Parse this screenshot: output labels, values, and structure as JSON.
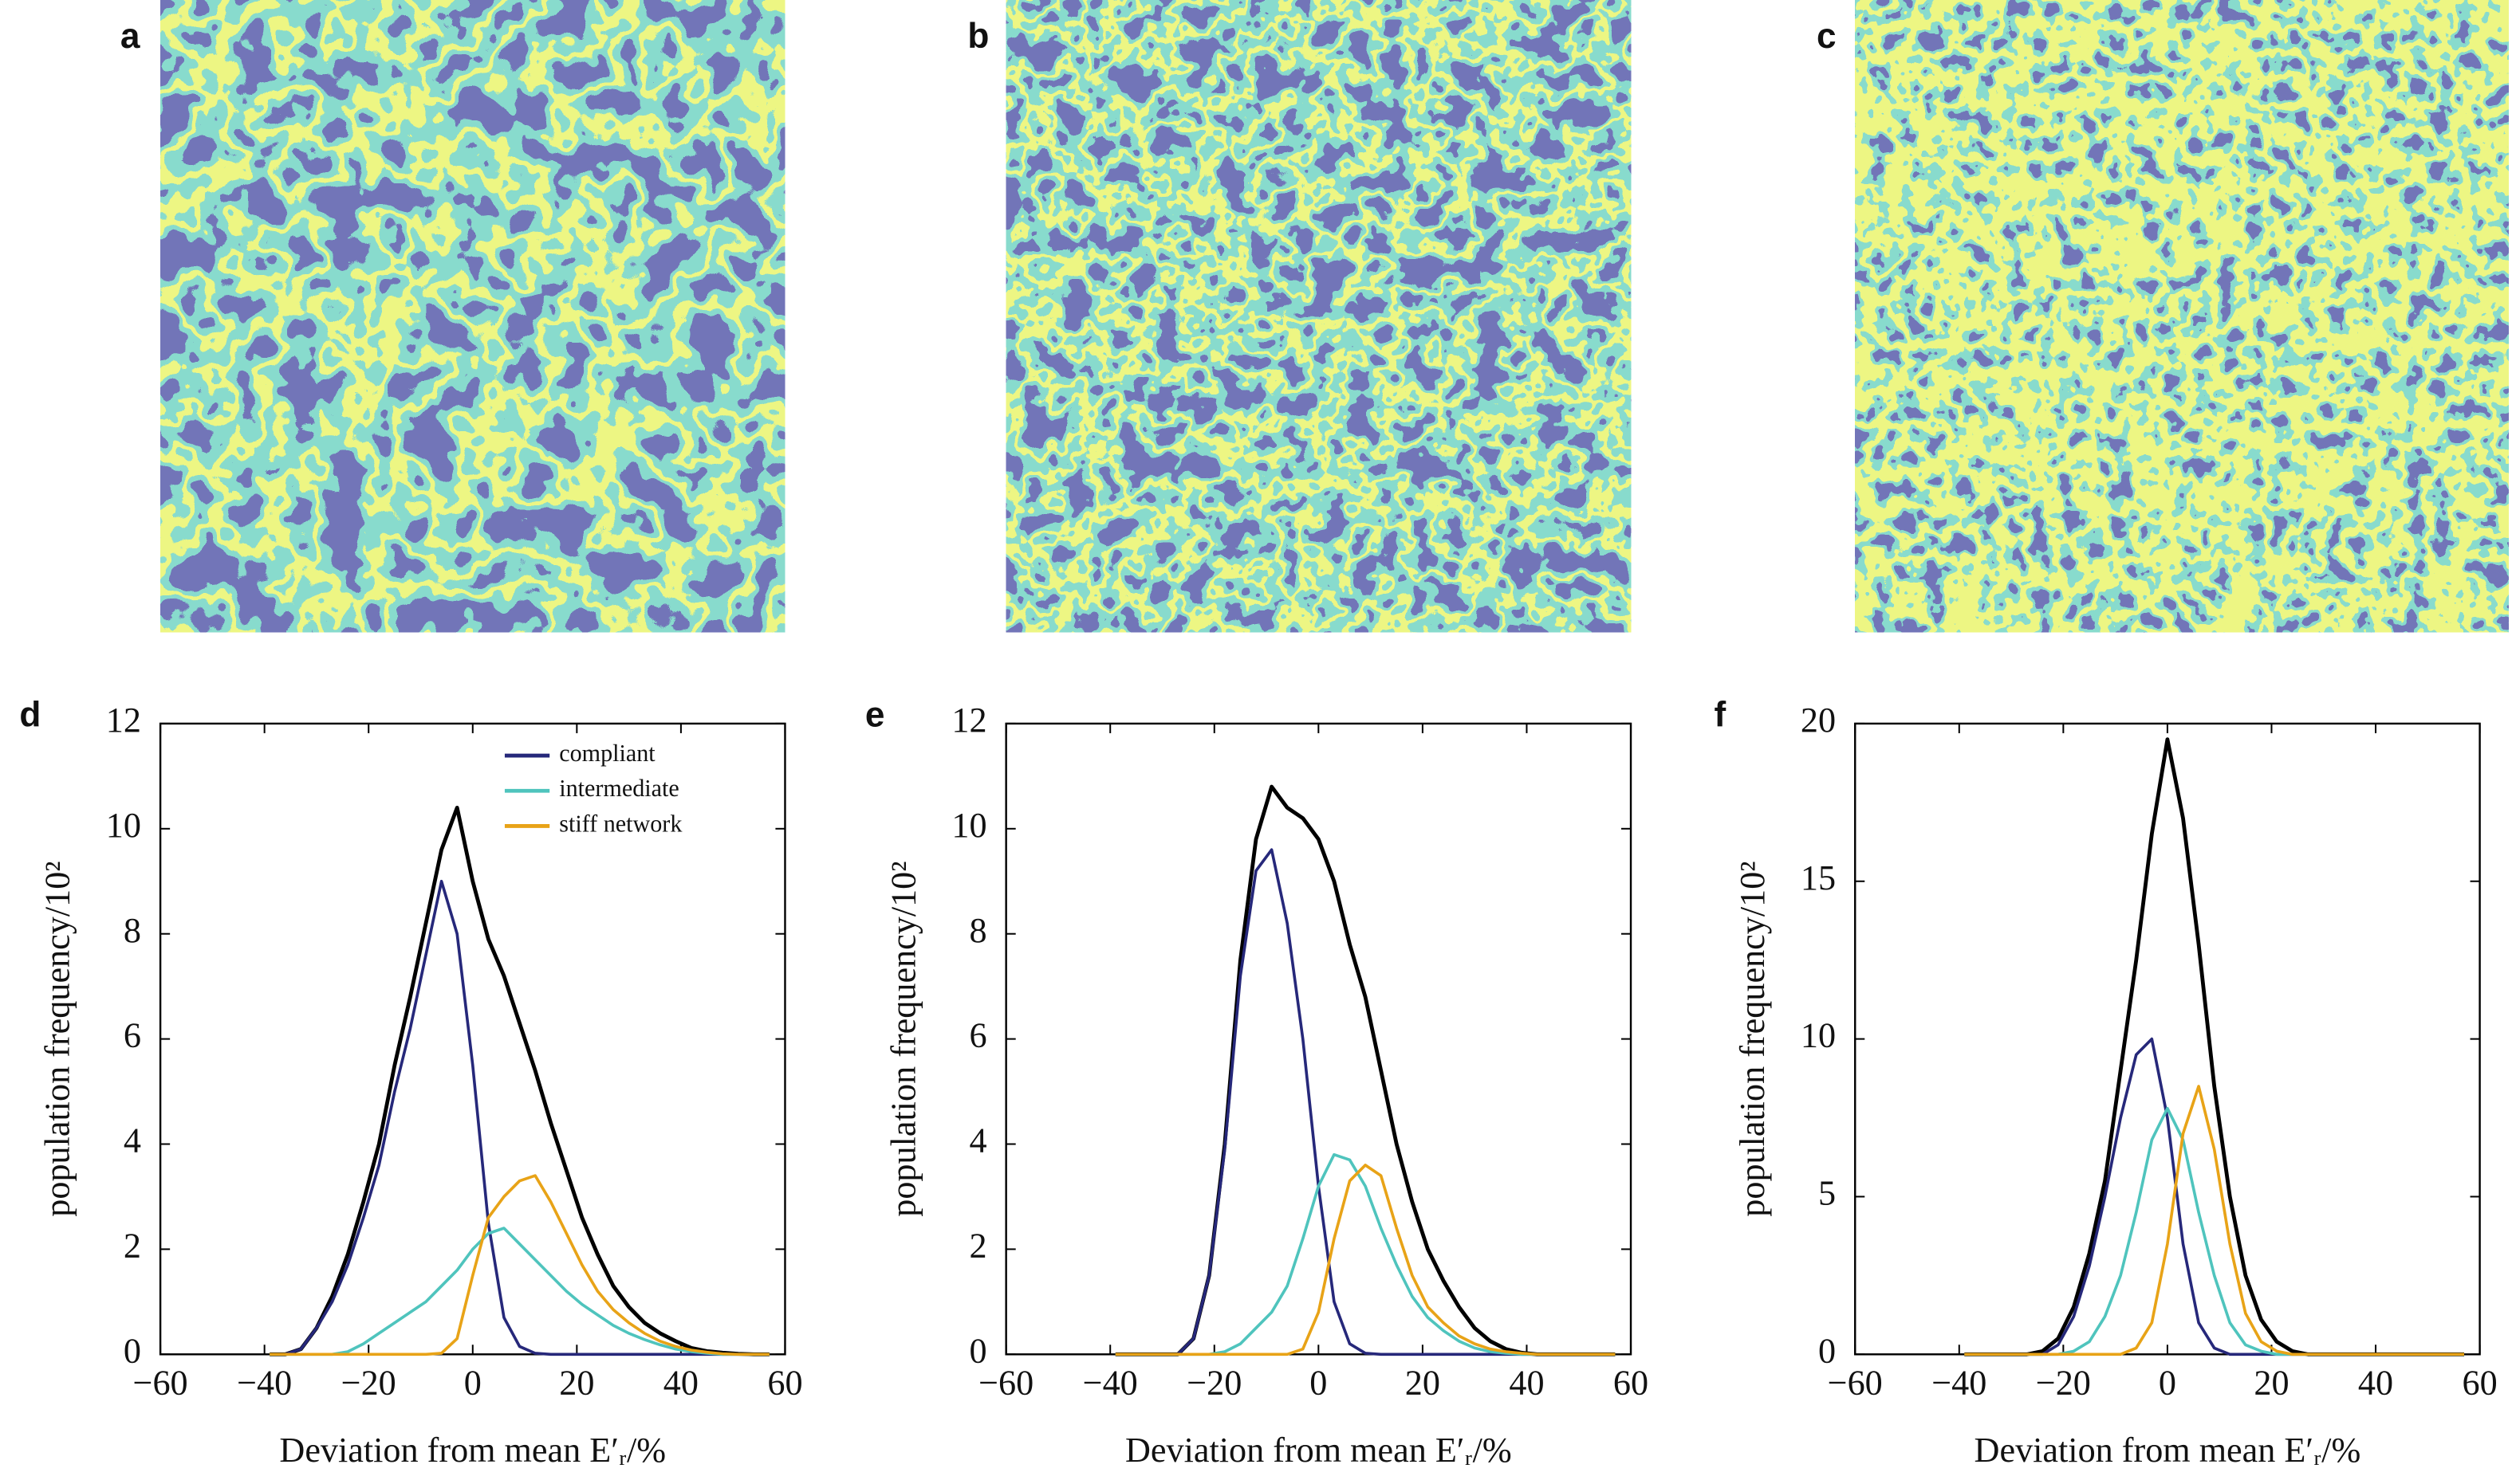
{
  "image_panels": [
    "a",
    "b",
    "c"
  ],
  "chart_data": [
    {
      "type": "line",
      "panel_label": "d",
      "xlabel": "Deviation from mean E′ᵣ/%",
      "ylabel": "population frequency/10²",
      "x": [
        -39,
        -36,
        -33,
        -30,
        -27,
        -24,
        -21,
        -18,
        -15,
        -12,
        -9,
        -6,
        -3,
        0,
        3,
        6,
        9,
        12,
        15,
        18,
        21,
        24,
        27,
        30,
        33,
        36,
        39,
        42,
        45,
        48,
        51,
        54,
        57
      ],
      "series": [
        {
          "color": "#000000",
          "values": [
            0,
            0,
            0.1,
            0.5,
            1.1,
            1.9,
            2.9,
            4.0,
            5.5,
            6.8,
            8.2,
            9.6,
            10.4,
            9.0,
            7.9,
            7.2,
            6.3,
            5.4,
            4.4,
            3.5,
            2.6,
            1.9,
            1.3,
            0.9,
            0.6,
            0.4,
            0.25,
            0.12,
            0.06,
            0.03,
            0.01,
            0,
            0
          ]
        },
        {
          "name": "compliant",
          "color": "#26287a",
          "values": [
            0,
            0,
            0.1,
            0.5,
            1.0,
            1.7,
            2.6,
            3.6,
            5.0,
            6.2,
            7.6,
            9.0,
            8.0,
            5.5,
            2.5,
            0.7,
            0.15,
            0.02,
            0,
            0,
            0,
            0,
            0,
            0,
            0,
            0,
            0,
            0,
            0,
            0,
            0,
            0,
            0
          ]
        },
        {
          "name": "intermediate",
          "color": "#4fc4bd",
          "values": [
            0,
            0,
            0,
            0,
            0,
            0.05,
            0.2,
            0.4,
            0.6,
            0.8,
            1.0,
            1.3,
            1.6,
            2.0,
            2.3,
            2.4,
            2.1,
            1.8,
            1.5,
            1.2,
            0.95,
            0.75,
            0.55,
            0.4,
            0.28,
            0.18,
            0.1,
            0.05,
            0.02,
            0,
            0,
            0,
            0
          ]
        },
        {
          "name": "stiff network",
          "color": "#e8a317",
          "values": [
            0,
            0,
            0,
            0,
            0,
            0,
            0,
            0,
            0,
            0,
            0,
            0.02,
            0.3,
            1.5,
            2.6,
            3.0,
            3.3,
            3.4,
            2.9,
            2.3,
            1.7,
            1.2,
            0.85,
            0.6,
            0.4,
            0.25,
            0.15,
            0.08,
            0.04,
            0.01,
            0,
            0,
            0
          ]
        }
      ],
      "xlim": [
        -60,
        60
      ],
      "ylim": [
        0,
        12
      ],
      "xticks": [
        {
          "value": -60,
          "label": "−60"
        },
        {
          "value": -40,
          "label": "−40"
        },
        {
          "value": -20,
          "label": "−20"
        },
        0,
        20,
        40,
        60
      ],
      "yticks": [
        0,
        2,
        4,
        6,
        8,
        10,
        12
      ],
      "legend": "upper right"
    },
    {
      "type": "line",
      "panel_label": "e",
      "xlabel": "Deviation from mean E′ᵣ/%",
      "ylabel": "population frequency/10²",
      "x": [
        -39,
        -36,
        -33,
        -30,
        -27,
        -24,
        -21,
        -18,
        -15,
        -12,
        -9,
        -6,
        -3,
        0,
        3,
        6,
        9,
        12,
        15,
        18,
        21,
        24,
        27,
        30,
        33,
        36,
        39,
        42,
        45,
        48,
        51,
        54,
        57
      ],
      "series": [
        {
          "color": "#000000",
          "values": [
            0,
            0,
            0,
            0,
            0,
            0.3,
            1.5,
            4.0,
            7.5,
            9.8,
            10.8,
            10.4,
            10.2,
            9.8,
            9.0,
            7.8,
            6.8,
            5.4,
            4.0,
            2.9,
            2.0,
            1.4,
            0.9,
            0.5,
            0.25,
            0.1,
            0.03,
            0,
            0,
            0,
            0,
            0,
            0
          ]
        },
        {
          "color": "#26287a",
          "values": [
            0,
            0,
            0,
            0,
            0,
            0.3,
            1.5,
            3.9,
            7.2,
            9.2,
            9.6,
            8.2,
            6.0,
            3.2,
            1.0,
            0.2,
            0.02,
            0,
            0,
            0,
            0,
            0,
            0,
            0,
            0,
            0,
            0,
            0,
            0,
            0,
            0,
            0,
            0
          ]
        },
        {
          "color": "#4fc4bd",
          "values": [
            0,
            0,
            0,
            0,
            0,
            0,
            0,
            0.05,
            0.2,
            0.5,
            0.8,
            1.3,
            2.2,
            3.2,
            3.8,
            3.7,
            3.2,
            2.4,
            1.7,
            1.1,
            0.7,
            0.45,
            0.25,
            0.12,
            0.05,
            0.02,
            0,
            0,
            0,
            0,
            0,
            0,
            0
          ]
        },
        {
          "color": "#e8a317",
          "values": [
            0,
            0,
            0,
            0,
            0,
            0,
            0,
            0,
            0,
            0,
            0,
            0,
            0.1,
            0.8,
            2.2,
            3.3,
            3.6,
            3.4,
            2.4,
            1.5,
            0.9,
            0.6,
            0.35,
            0.2,
            0.1,
            0.05,
            0.02,
            0,
            0,
            0,
            0,
            0,
            0
          ]
        }
      ],
      "xlim": [
        -60,
        60
      ],
      "ylim": [
        0,
        12
      ],
      "xticks": [
        {
          "value": -60,
          "label": "−60"
        },
        {
          "value": -40,
          "label": "−40"
        },
        {
          "value": -20,
          "label": "−20"
        },
        0,
        20,
        40,
        60
      ],
      "yticks": [
        0,
        2,
        4,
        6,
        8,
        10,
        12
      ]
    },
    {
      "type": "line",
      "panel_label": "f",
      "xlabel": "Deviation from mean E′ᵣ/%",
      "ylabel": "population frequency/10²",
      "x": [
        -39,
        -36,
        -33,
        -30,
        -27,
        -24,
        -21,
        -18,
        -15,
        -12,
        -9,
        -6,
        -3,
        0,
        3,
        6,
        9,
        12,
        15,
        18,
        21,
        24,
        27,
        30,
        33,
        36,
        39,
        42,
        45,
        48,
        51,
        54,
        57
      ],
      "series": [
        {
          "color": "#000000",
          "values": [
            0,
            0,
            0,
            0,
            0,
            0.1,
            0.5,
            1.5,
            3.2,
            5.5,
            9.0,
            12.5,
            16.5,
            19.5,
            17.0,
            13.0,
            8.5,
            5.0,
            2.5,
            1.1,
            0.4,
            0.1,
            0,
            0,
            0,
            0,
            0,
            0,
            0,
            0,
            0,
            0,
            0
          ]
        },
        {
          "color": "#26287a",
          "values": [
            0,
            0,
            0,
            0,
            0,
            0,
            0.3,
            1.2,
            2.8,
            5.0,
            7.5,
            9.5,
            10.0,
            7.5,
            3.5,
            1.0,
            0.2,
            0,
            0,
            0,
            0,
            0,
            0,
            0,
            0,
            0,
            0,
            0,
            0,
            0,
            0,
            0,
            0
          ]
        },
        {
          "color": "#4fc4bd",
          "values": [
            0,
            0,
            0,
            0,
            0,
            0,
            0,
            0.1,
            0.4,
            1.2,
            2.5,
            4.5,
            6.8,
            7.8,
            6.8,
            4.5,
            2.5,
            1.0,
            0.3,
            0.1,
            0,
            0,
            0,
            0,
            0,
            0,
            0,
            0,
            0,
            0,
            0,
            0,
            0
          ]
        },
        {
          "color": "#e8a317",
          "values": [
            0,
            0,
            0,
            0,
            0,
            0,
            0,
            0,
            0,
            0,
            0,
            0.2,
            1.0,
            3.5,
            7.0,
            8.5,
            6.5,
            3.5,
            1.3,
            0.4,
            0.1,
            0,
            0,
            0,
            0,
            0,
            0,
            0,
            0,
            0,
            0,
            0,
            0
          ]
        }
      ],
      "xlim": [
        -60,
        60
      ],
      "ylim": [
        0,
        20
      ],
      "xticks": [
        {
          "value": -60,
          "label": "−60"
        },
        {
          "value": -40,
          "label": "−40"
        },
        {
          "value": -20,
          "label": "−20"
        },
        0,
        20,
        40,
        60
      ],
      "yticks": [
        0,
        5,
        10,
        15,
        20
      ]
    }
  ]
}
